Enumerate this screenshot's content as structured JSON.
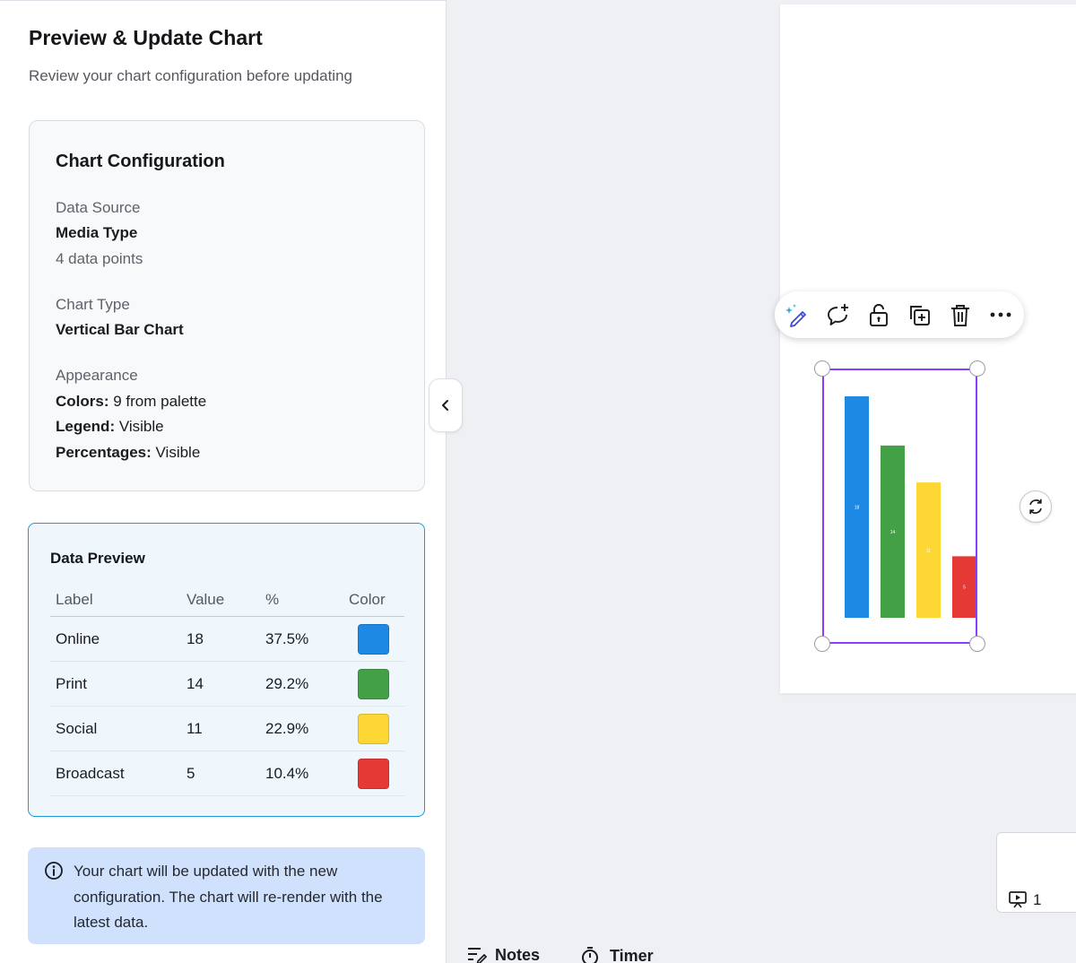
{
  "panel": {
    "title": "Preview & Update Chart",
    "subtitle": "Review your chart configuration before updating"
  },
  "config": {
    "title": "Chart Configuration",
    "data_source_label": "Data Source",
    "data_source_value": "Media Type",
    "data_points": "4 data points",
    "chart_type_label": "Chart Type",
    "chart_type_value": "Vertical Bar Chart",
    "appearance_label": "Appearance",
    "colors_key": "Colors:",
    "colors_value": "9 from palette",
    "legend_key": "Legend:",
    "legend_value": "Visible",
    "percentages_key": "Percentages:",
    "percentages_value": "Visible"
  },
  "data_preview": {
    "title": "Data Preview",
    "headers": {
      "label": "Label",
      "value": "Value",
      "pct": "%",
      "color": "Color"
    },
    "rows": [
      {
        "label": "Online",
        "value": "18",
        "pct": "37.5%",
        "color": "#1e88e5"
      },
      {
        "label": "Print",
        "value": "14",
        "pct": "29.2%",
        "color": "#43a047"
      },
      {
        "label": "Social",
        "value": "11",
        "pct": "22.9%",
        "color": "#fdd835"
      },
      {
        "label": "Broadcast",
        "value": "5",
        "pct": "10.4%",
        "color": "#e53935"
      }
    ]
  },
  "info": {
    "text": "Your chart will be updated with the new configuration. The chart will re-render with the latest data."
  },
  "toolbar": {
    "icons": [
      "magic-edit-icon",
      "add-comment-icon",
      "unlock-icon",
      "duplicate-icon",
      "delete-icon",
      "more-icon"
    ]
  },
  "chart_data": {
    "type": "bar",
    "categories": [
      "Online",
      "Print",
      "Social",
      "Broadcast"
    ],
    "values": [
      18,
      14,
      11,
      5
    ],
    "colors": [
      "#1e88e5",
      "#43a047",
      "#fdd835",
      "#e53935"
    ],
    "data_labels": [
      "18",
      "14",
      "11",
      "5"
    ],
    "ylim": [
      0,
      18
    ]
  },
  "page_thumb": {
    "number": "1"
  },
  "bottom_bar": {
    "notes": "Notes",
    "timer": "Timer"
  },
  "accent_colors": {
    "selection": "#8b3dff",
    "data_card_border": "#1f9ad6",
    "info_bg": "#cfe1fd"
  }
}
